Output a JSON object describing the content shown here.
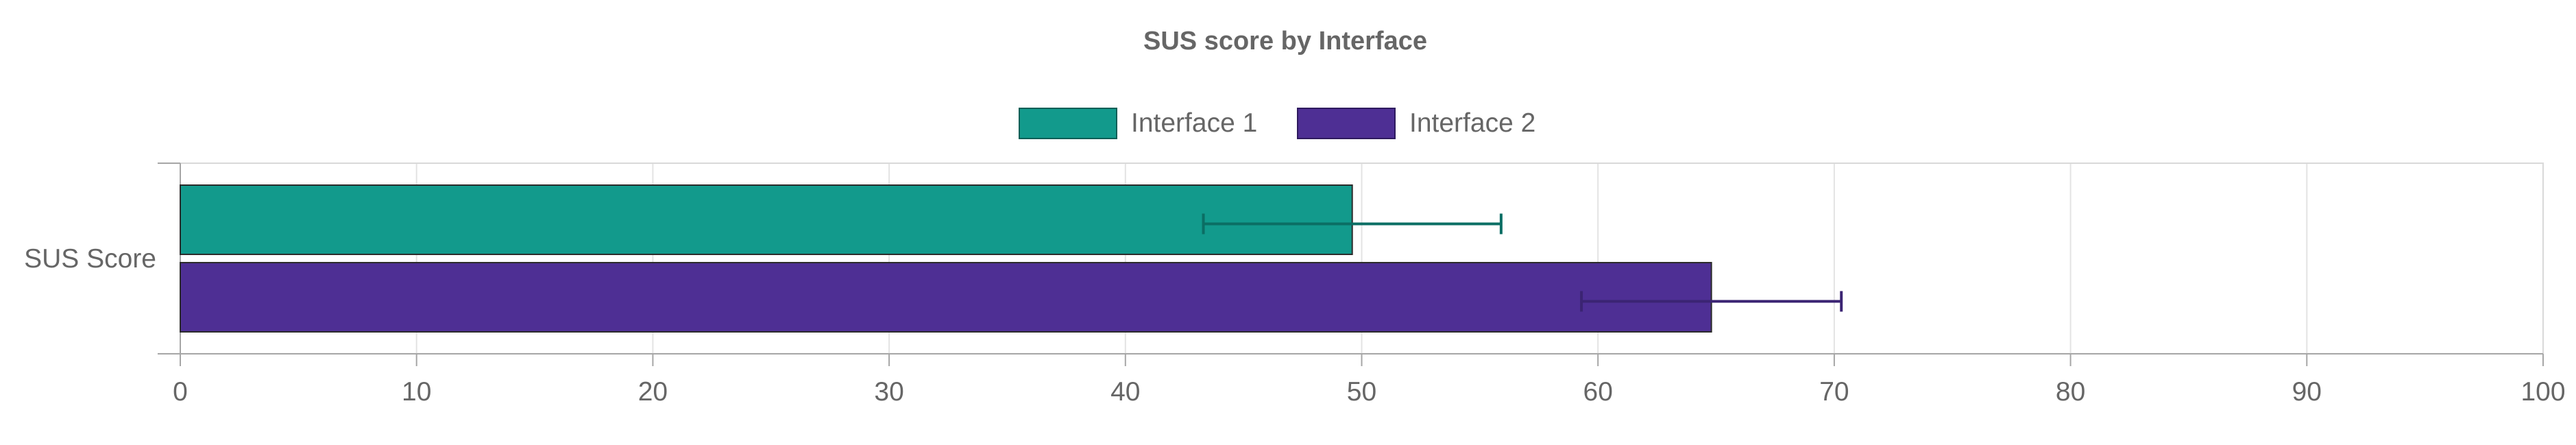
{
  "chart_data": {
    "type": "bar",
    "orientation": "horizontal",
    "title": "SUS score by Interface",
    "categories": [
      "SUS Score"
    ],
    "series": [
      {
        "name": "Interface 1",
        "values": [
          49.6
        ],
        "error": [
          [
            43.3,
            55.9
          ]
        ],
        "color": "#129a8c",
        "error_color": "#0b6e64"
      },
      {
        "name": "Interface 2",
        "values": [
          64.8
        ],
        "error": [
          [
            59.3,
            70.3
          ]
        ],
        "color": "#4e2f94",
        "error_color": "#3b2473"
      }
    ],
    "xlim": [
      0,
      100
    ],
    "xticks": [
      "0",
      "10",
      "20",
      "30",
      "40",
      "50",
      "60",
      "70",
      "80",
      "90",
      "100"
    ],
    "grid": true,
    "legend_position": "top"
  }
}
